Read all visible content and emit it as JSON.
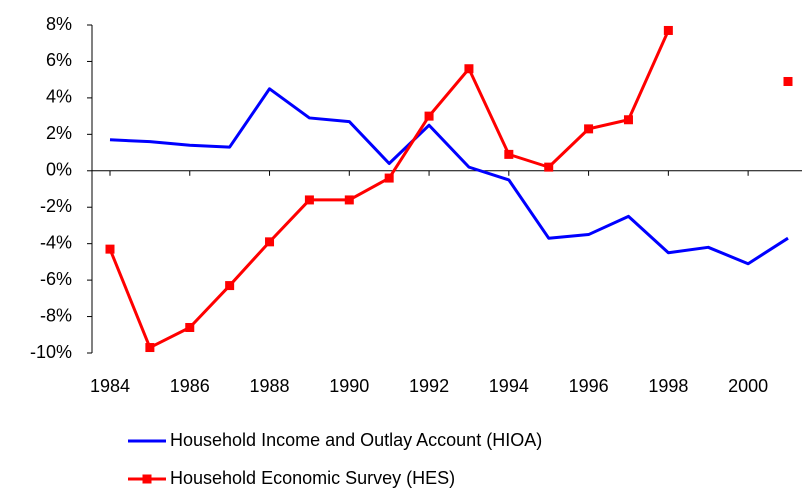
{
  "chart_data": {
    "type": "line",
    "x": [
      1984,
      1985,
      1986,
      1987,
      1988,
      1989,
      1990,
      1991,
      1992,
      1993,
      1994,
      1995,
      1996,
      1997,
      1998,
      1999,
      2000,
      2001
    ],
    "xlim": [
      1984,
      2001
    ],
    "xticks": [
      1984,
      1986,
      1988,
      1990,
      1992,
      1994,
      1996,
      1998,
      2000
    ],
    "ylim": [
      -10,
      8
    ],
    "yticks": [
      {
        "value": -10,
        "label": "-10%"
      },
      {
        "value": -8,
        "label": "-8%"
      },
      {
        "value": -6,
        "label": "-6%"
      },
      {
        "value": -4,
        "label": "-4%"
      },
      {
        "value": -2,
        "label": "-2%"
      },
      {
        "value": 0,
        "label": "0%"
      },
      {
        "value": 2,
        "label": "2%"
      },
      {
        "value": 4,
        "label": "4%"
      },
      {
        "value": 6,
        "label": "6%"
      },
      {
        "value": 8,
        "label": "8%"
      }
    ],
    "grid": false,
    "legend": "bottom",
    "series": [
      {
        "name": "Household Income and Outlay Account (HIOA)",
        "color": "#0000ff",
        "marker": false,
        "values": [
          1.7,
          1.6,
          1.4,
          1.3,
          4.5,
          2.9,
          2.7,
          0.4,
          2.5,
          0.2,
          -0.5,
          -3.7,
          -3.5,
          -2.5,
          -4.5,
          -4.2,
          -5.1,
          -3.7
        ]
      },
      {
        "name": "Household Economic Survey (HES)",
        "color": "#ff0000",
        "marker": true,
        "values": [
          -4.3,
          -9.7,
          -8.6,
          -6.3,
          -3.9,
          -1.6,
          -1.6,
          -0.4,
          3.0,
          5.6,
          0.9,
          0.2,
          2.3,
          2.8,
          7.7,
          null,
          null,
          4.9
        ]
      }
    ]
  }
}
